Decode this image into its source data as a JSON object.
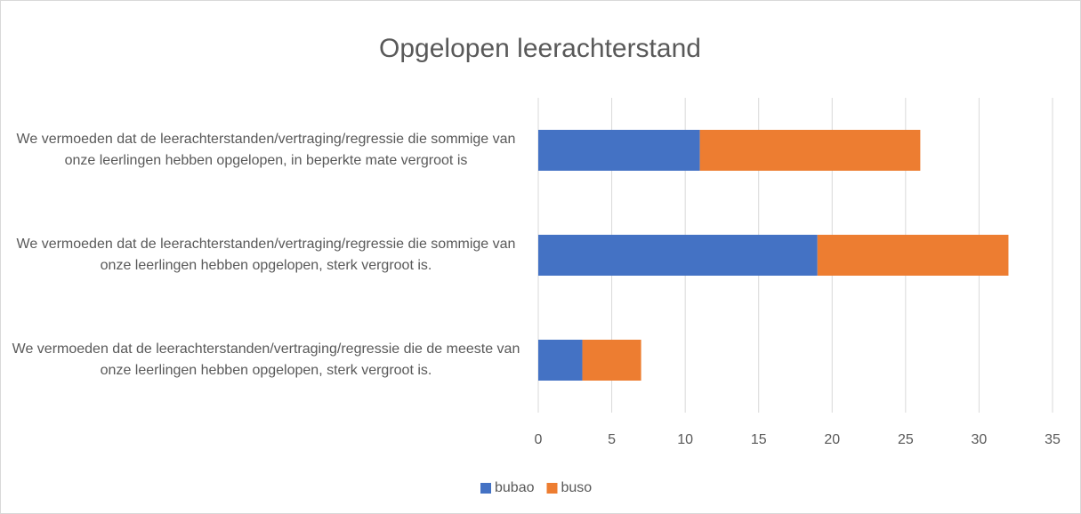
{
  "chart_data": {
    "type": "stacked_barh",
    "title": "Opgelopen leerachterstand",
    "categories": [
      "We vermoeden dat de leerachterstanden/vertraging/regressie die sommige van onze leerlingen hebben opgelopen, in beperkte mate vergroot is",
      "We vermoeden dat de leerachterstanden/vertraging/regressie die sommige van onze leerlingen hebben opgelopen, sterk vergroot is.",
      "We vermoeden dat de leerachterstanden/vertraging/regressie die de meeste van onze leerlingen hebben opgelopen, sterk vergroot is."
    ],
    "series": [
      {
        "name": "bubao",
        "color": "#4472c4",
        "values": [
          11,
          19,
          3
        ]
      },
      {
        "name": "buso",
        "color": "#ed7d31",
        "values": [
          15,
          13,
          4
        ]
      }
    ],
    "xlim": [
      0,
      35
    ],
    "xticks": [
      0,
      5,
      10,
      15,
      20,
      25,
      30,
      35
    ],
    "grid": true,
    "legend": "bottom"
  }
}
